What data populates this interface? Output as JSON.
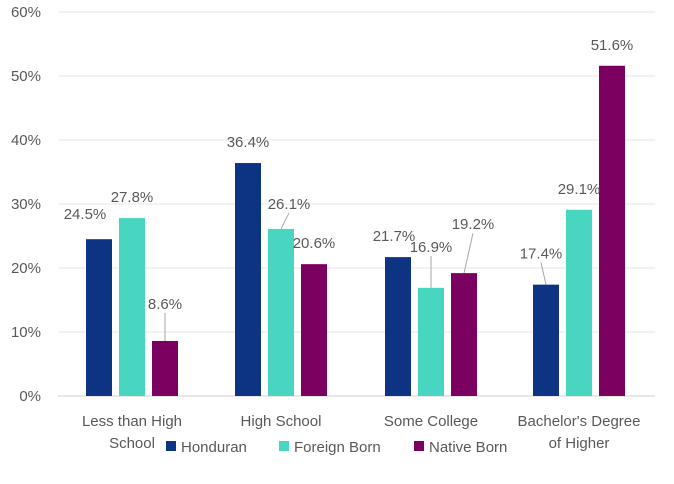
{
  "chart_data": {
    "type": "bar",
    "categories": [
      [
        "Less than High",
        "School"
      ],
      [
        "High School"
      ],
      [
        "Some College"
      ],
      [
        "Bachelor's  Degree",
        "of Higher"
      ]
    ],
    "series": [
      {
        "name": "Honduran",
        "color": "#0d3483",
        "values": [
          24.5,
          36.4,
          21.7,
          17.4
        ],
        "labels": [
          "24.5%",
          "36.4%",
          "21.7%",
          "17.4%"
        ]
      },
      {
        "name": "Foreign Born",
        "color": "#48d6c0",
        "values": [
          27.8,
          26.1,
          16.9,
          29.1
        ],
        "labels": [
          "27.8%",
          "26.1%",
          "16.9%",
          "29.1%"
        ]
      },
      {
        "name": "Native Born",
        "color": "#7b0060",
        "values": [
          8.6,
          20.6,
          19.2,
          51.6
        ],
        "labels": [
          "8.6%",
          "20.6%",
          "19.2%",
          "51.6%"
        ]
      }
    ],
    "yticks": [
      "0%",
      "10%",
      "20%",
      "30%",
      "40%",
      "50%",
      "60%"
    ],
    "ylim": [
      0,
      60
    ],
    "grid": true,
    "legend_position": "bottom"
  }
}
